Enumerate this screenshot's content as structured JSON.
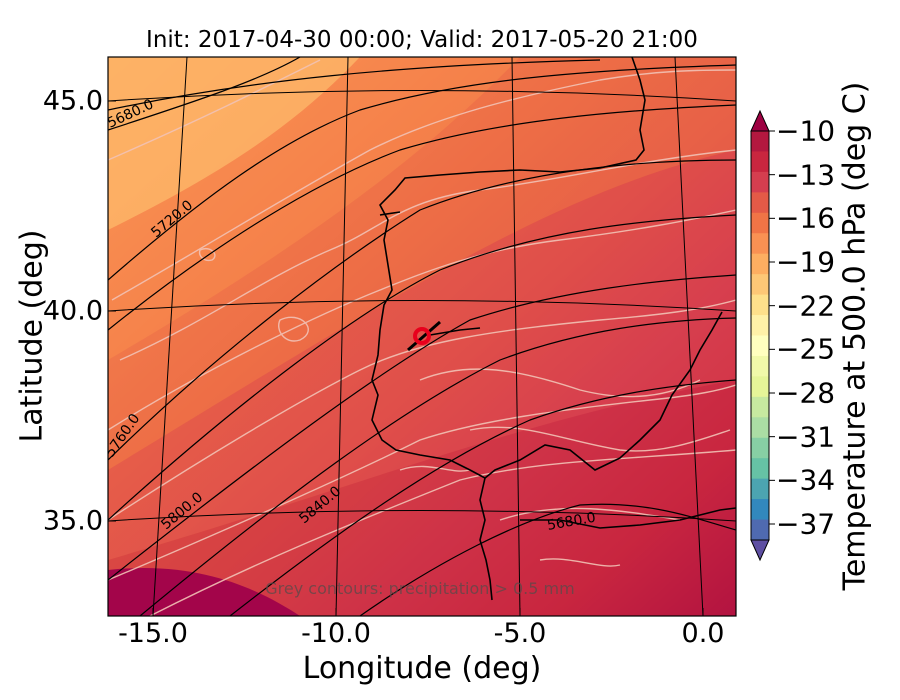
{
  "title": "Init: 2017-04-30 00:00; Valid: 2017-05-20 21:00",
  "xlabel": "Longitude (deg)",
  "ylabel": "Latitude (deg)",
  "x_ticks": [
    "-15.0",
    "-10.0",
    "-5.0",
    "0.0"
  ],
  "y_ticks": [
    "45.0",
    "40.0",
    "35.0"
  ],
  "note": "Grey contours: precipitation > 0.5 mm",
  "colorbar": {
    "label": "Temperature at 500.0 hPa (deg C)",
    "ticks": [
      "−10",
      "−13",
      "−16",
      "−19",
      "−22",
      "−25",
      "−28",
      "−31",
      "−34",
      "−37"
    ],
    "colormap": "Spectral",
    "colors": [
      "#9e0142",
      "#b3183f",
      "#c9263f",
      "#d53e4f",
      "#e45a47",
      "#f07446",
      "#f99153",
      "#fdae61",
      "#fdc776",
      "#fee08b",
      "#fff1a8",
      "#ffffbf",
      "#f1f9a9",
      "#e6f598",
      "#c7e9a0",
      "#abdda4",
      "#87cfa4",
      "#66c2a5",
      "#4ca4b1",
      "#3288bd",
      "#4f6ab0",
      "#5e4fa2"
    ]
  },
  "marker": {
    "lon": -7.6,
    "lat": 39.3,
    "color": "#e8001c"
  },
  "chart_data": {
    "type": "map",
    "xlim": [
      -15.8,
      0.0
    ],
    "ylim": [
      32.8,
      46.1
    ],
    "field": "Temperature at 500.0 hPa",
    "field_range_deg_c": [
      -10,
      -17
    ],
    "height_contours": [
      {
        "value": 5680.0,
        "label": "5680.0"
      },
      {
        "value": 5720.0,
        "label": "5720.0"
      },
      {
        "value": 5760.0,
        "label": "5760.0"
      },
      {
        "value": 5800.0,
        "label": "5800.0"
      },
      {
        "value": 5840.0,
        "label": "5840.0"
      },
      {
        "value": 5680.0,
        "label": "5680.0"
      }
    ]
  }
}
